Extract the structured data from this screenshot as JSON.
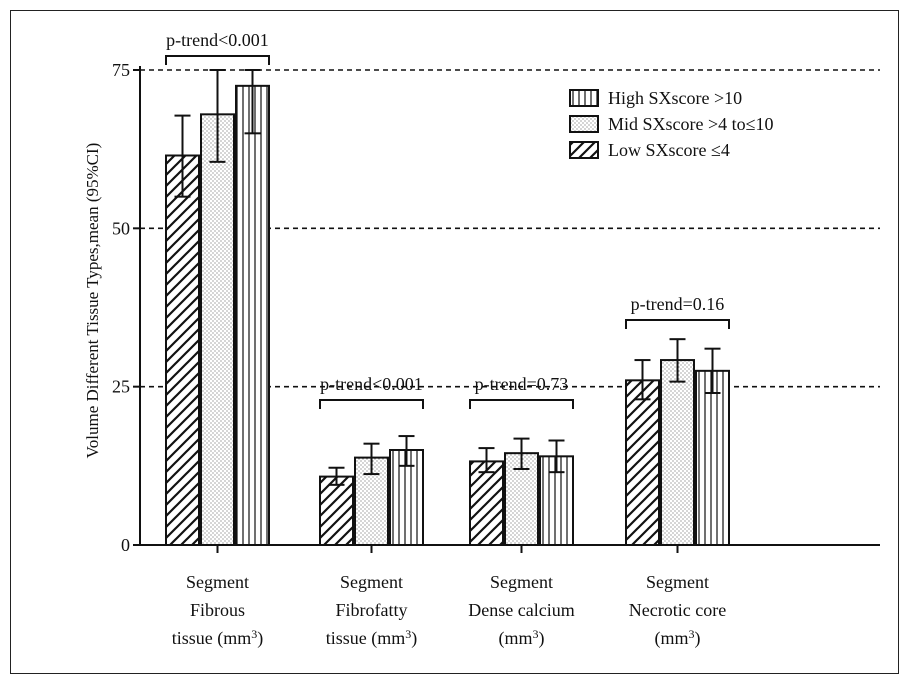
{
  "chart_data": {
    "type": "bar",
    "ylabel": "Volume Different Tissue Types,mean (95%CI)",
    "ylim": [
      0,
      75
    ],
    "yticks": [
      0,
      25,
      50,
      75
    ],
    "reference_lines": [
      25,
      50,
      75
    ],
    "categories": [
      [
        "Segment",
        "Fibrous",
        "tissue (mm³)"
      ],
      [
        "Segment",
        "Fibrofatty",
        "tissue (mm³)"
      ],
      [
        "Segment",
        "Dense calcium",
        "(mm³)"
      ],
      [
        "Segment",
        "Necrotic core",
        "(mm³)"
      ]
    ],
    "series": [
      {
        "name": "Low SXscore ≤4",
        "pattern": "diagonal",
        "values": [
          61.5,
          10.8,
          13.2,
          26.0
        ],
        "ci_low": [
          55.0,
          9.5,
          11.5,
          23.0
        ],
        "ci_high": [
          67.8,
          12.2,
          15.3,
          29.2
        ]
      },
      {
        "name": "Mid SXscore >4 to≤10",
        "pattern": "dots",
        "values": [
          68.0,
          13.8,
          14.5,
          29.2
        ],
        "ci_low": [
          60.5,
          11.2,
          12.0,
          25.8
        ],
        "ci_high": [
          75.0,
          16.0,
          16.8,
          32.5
        ]
      },
      {
        "name": "High SXscore >10",
        "pattern": "vertical",
        "values": [
          72.5,
          15.0,
          14.0,
          27.5
        ],
        "ci_low": [
          65.0,
          12.5,
          11.5,
          24.0
        ],
        "ci_high": [
          75.0,
          17.2,
          16.5,
          31.0
        ]
      }
    ],
    "legend_order": [
      2,
      1,
      0
    ],
    "legend_position": "top-right",
    "annotations": [
      {
        "text": "p-trend<0.001",
        "group": 0
      },
      {
        "text": "p-trend<0.001",
        "group": 1
      },
      {
        "text": "p-trend=0.73",
        "group": 2
      },
      {
        "text": "p-trend=0.16",
        "group": 3
      }
    ]
  }
}
